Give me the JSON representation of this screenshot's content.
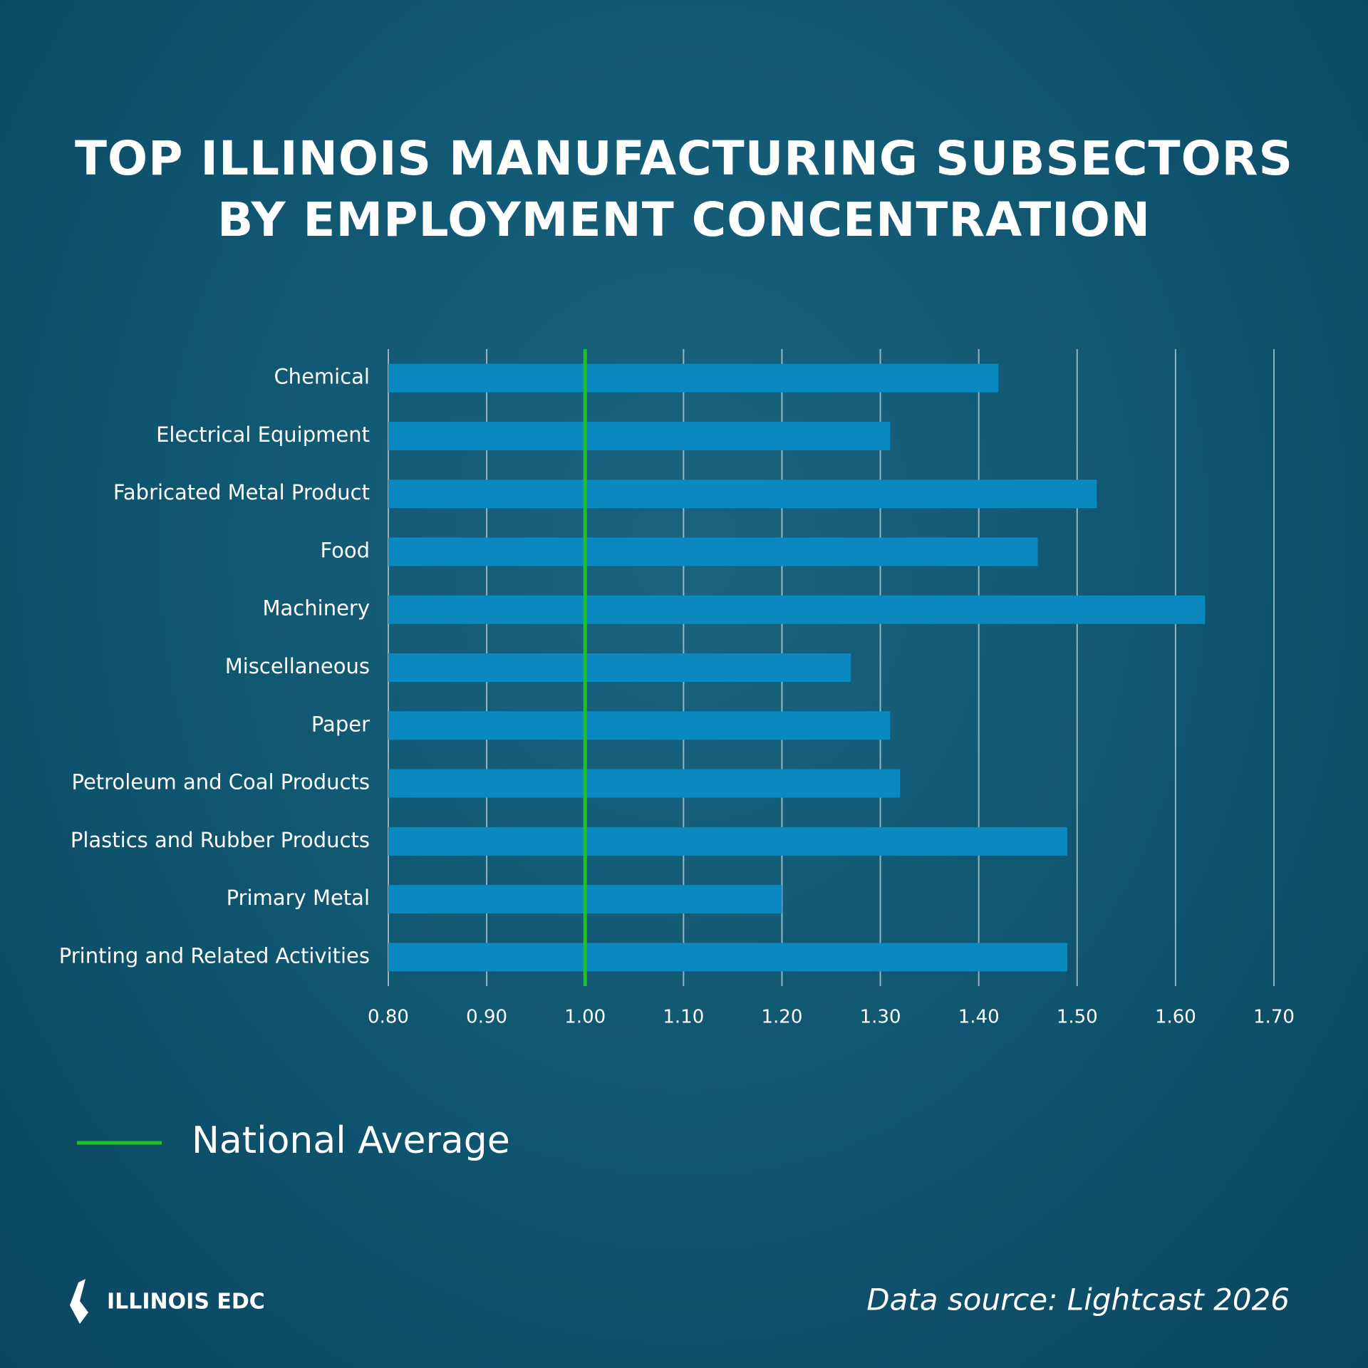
{
  "chart_data": {
    "type": "hbar",
    "title": "TOP ILLINOIS MANUFACTURING SUBSECTORS BY EMPLOYMENT CONCENTRATION",
    "categories": [
      "Chemical",
      "Electrical Equipment",
      "Fabricated Metal Product",
      "Food",
      "Machinery",
      "Miscellaneous",
      "Paper",
      "Petroleum and Coal Products",
      "Plastics and Rubber Products",
      "Primary Metal",
      "Printing and Related Activities"
    ],
    "values": [
      1.42,
      1.31,
      1.52,
      1.46,
      1.63,
      1.27,
      1.31,
      1.32,
      1.49,
      1.2,
      1.49
    ],
    "color": "#0a88c0",
    "xlim": [
      0.8,
      1.7
    ],
    "xticks": [
      {
        "value": 0.8,
        "label": "0.80"
      },
      {
        "value": 0.9,
        "label": "0.90"
      },
      {
        "value": 1.0,
        "label": "1.00"
      },
      {
        "value": 1.1,
        "label": "1.10"
      },
      {
        "value": 1.2,
        "label": "1.20"
      },
      {
        "value": 1.3,
        "label": "1.30"
      },
      {
        "value": 1.4,
        "label": "1.40"
      },
      {
        "value": 1.5,
        "label": "1.50"
      },
      {
        "value": 1.6,
        "label": "1.60"
      },
      {
        "value": 1.7,
        "label": "1.70"
      }
    ],
    "grid": true,
    "reference_line": {
      "name": "National Average",
      "value": 1.0,
      "color": "#1fc21f"
    },
    "source": "Data source: Lightcast 2026",
    "logo": "ILLINOIS EDC"
  }
}
